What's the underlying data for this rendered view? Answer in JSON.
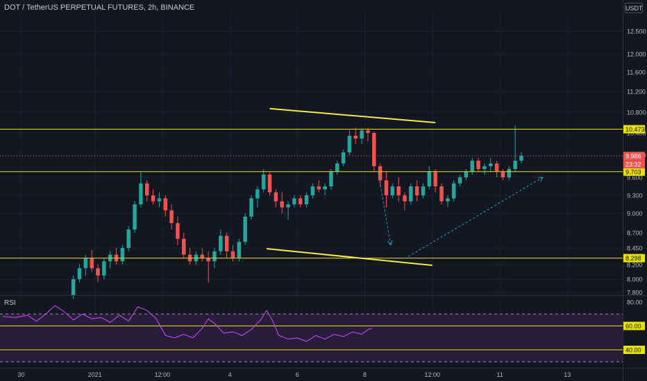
{
  "header": {
    "title": "DOT / TetherUS PERPETUAL FUTURES, 2h, BINANCE",
    "currency": "USDT"
  },
  "colors": {
    "bg": "#131722",
    "up": "#26a69a",
    "down": "#ef5350",
    "level": "#e8e200",
    "trend": "#f5e94c",
    "arrow": "#26a3b0",
    "rsi": "#b845d9",
    "rsi_band": "#281d3c",
    "axis_text": "#b2b5be",
    "grid": "#1c2030"
  },
  "chart_data": [
    {
      "type": "candlestick",
      "title": "DOT / TetherUS PERPETUAL FUTURES, 2h, BINANCE",
      "ylim": [
        7.8,
        12.9
      ],
      "y_ticks": [
        "12.500",
        "12.000",
        "11.600",
        "11.200",
        "10.800",
        "10.400",
        "10.000",
        "9.600",
        "9.300",
        "9.000",
        "8.700",
        "8.450",
        "8.200",
        "8.000",
        "7.800"
      ],
      "y_tick_values": [
        12.5,
        12.0,
        11.6,
        11.2,
        10.8,
        10.4,
        10.0,
        9.6,
        9.3,
        9.0,
        8.7,
        8.45,
        8.2,
        8.0,
        7.8
      ],
      "x_ticks": [
        "30",
        "2021",
        "12:00",
        "4",
        "6",
        "8",
        "12:00",
        "11",
        "13"
      ],
      "x_tick_positions": [
        3,
        15,
        26,
        37,
        48,
        59,
        70,
        81,
        92
      ],
      "start_index": 11.5,
      "ohlc": [
        [
          7.75,
          8.05,
          7.7,
          8.0
        ],
        [
          8.0,
          8.2,
          7.95,
          8.15
        ],
        [
          8.15,
          8.35,
          8.05,
          8.3
        ],
        [
          8.3,
          8.42,
          8.1,
          8.15
        ],
        [
          8.15,
          8.2,
          7.95,
          8.05
        ],
        [
          8.05,
          8.3,
          8.0,
          8.25
        ],
        [
          8.25,
          8.4,
          8.15,
          8.35
        ],
        [
          8.35,
          8.45,
          8.2,
          8.25
        ],
        [
          8.25,
          8.5,
          8.2,
          8.45
        ],
        [
          8.45,
          8.8,
          8.4,
          8.75
        ],
        [
          8.75,
          9.2,
          8.7,
          9.15
        ],
        [
          9.15,
          9.7,
          9.1,
          9.5
        ],
        [
          9.5,
          9.55,
          9.2,
          9.3
        ],
        [
          9.3,
          9.4,
          9.15,
          9.2
        ],
        [
          9.2,
          9.35,
          9.1,
          9.25
        ],
        [
          9.25,
          9.3,
          8.95,
          9.05
        ],
        [
          9.05,
          9.15,
          8.75,
          8.85
        ],
        [
          8.85,
          8.95,
          8.5,
          8.6
        ],
        [
          8.6,
          8.7,
          8.3,
          8.35
        ],
        [
          8.35,
          8.45,
          8.2,
          8.25
        ],
        [
          8.25,
          8.4,
          8.2,
          8.35
        ],
        [
          8.35,
          8.45,
          8.25,
          8.3
        ],
        [
          8.3,
          8.4,
          7.95,
          8.25
        ],
        [
          8.25,
          8.45,
          8.15,
          8.4
        ],
        [
          8.4,
          8.75,
          8.35,
          8.65
        ],
        [
          8.65,
          8.7,
          8.3,
          8.4
        ],
        [
          8.4,
          8.5,
          8.25,
          8.3
        ],
        [
          8.3,
          8.6,
          8.25,
          8.55
        ],
        [
          8.55,
          9.0,
          8.5,
          8.95
        ],
        [
          8.95,
          9.3,
          8.9,
          9.25
        ],
        [
          9.25,
          9.45,
          9.1,
          9.4
        ],
        [
          9.4,
          9.75,
          9.35,
          9.65
        ],
        [
          9.65,
          9.7,
          9.3,
          9.35
        ],
        [
          9.35,
          9.4,
          9.1,
          9.2
        ],
        [
          9.2,
          9.35,
          9.0,
          9.1
        ],
        [
          9.1,
          9.2,
          8.9,
          9.15
        ],
        [
          9.15,
          9.3,
          9.1,
          9.25
        ],
        [
          9.25,
          9.3,
          9.1,
          9.15
        ],
        [
          9.15,
          9.35,
          9.1,
          9.3
        ],
        [
          9.3,
          9.5,
          9.25,
          9.45
        ],
        [
          9.45,
          9.55,
          9.35,
          9.4
        ],
        [
          9.4,
          9.5,
          9.3,
          9.45
        ],
        [
          9.45,
          9.75,
          9.4,
          9.7
        ],
        [
          9.7,
          9.9,
          9.65,
          9.85
        ],
        [
          9.85,
          10.1,
          9.8,
          10.05
        ],
        [
          10.05,
          10.45,
          10.0,
          10.35
        ],
        [
          10.35,
          10.5,
          10.2,
          10.3
        ],
        [
          10.3,
          10.5,
          10.2,
          10.45
        ],
        [
          10.45,
          10.5,
          10.25,
          10.4
        ],
        [
          10.4,
          10.42,
          9.7,
          9.8
        ],
        [
          9.8,
          9.85,
          9.45,
          9.55
        ],
        [
          9.55,
          9.7,
          9.1,
          9.3
        ],
        [
          9.3,
          9.5,
          9.25,
          9.45
        ],
        [
          9.45,
          9.6,
          9.2,
          9.3
        ],
        [
          9.3,
          9.35,
          9.05,
          9.2
        ],
        [
          9.2,
          9.5,
          9.15,
          9.45
        ],
        [
          9.45,
          9.55,
          9.2,
          9.3
        ],
        [
          9.3,
          9.5,
          9.25,
          9.45
        ],
        [
          9.45,
          9.8,
          9.4,
          9.7
        ],
        [
          9.7,
          9.75,
          9.35,
          9.45
        ],
        [
          9.45,
          9.5,
          9.15,
          9.2
        ],
        [
          9.2,
          9.3,
          9.1,
          9.25
        ],
        [
          9.25,
          9.55,
          9.2,
          9.5
        ],
        [
          9.5,
          9.65,
          9.45,
          9.6
        ],
        [
          9.6,
          9.75,
          9.55,
          9.7
        ],
        [
          9.7,
          9.95,
          9.65,
          9.9
        ],
        [
          9.9,
          9.95,
          9.7,
          9.75
        ],
        [
          9.75,
          9.85,
          9.65,
          9.8
        ],
        [
          9.8,
          9.95,
          9.7,
          9.85
        ],
        [
          9.85,
          9.9,
          9.6,
          9.7
        ],
        [
          9.7,
          9.75,
          9.55,
          9.6
        ],
        [
          9.6,
          9.8,
          9.55,
          9.75
        ],
        [
          9.75,
          10.55,
          9.7,
          9.9
        ],
        [
          9.9,
          10.05,
          9.85,
          9.986
        ]
      ],
      "levels": [
        {
          "value": 10.473,
          "label": "10.473"
        },
        {
          "value": 9.703,
          "label": "9.703"
        },
        {
          "value": 8.298,
          "label": "8.298"
        }
      ],
      "last_price": {
        "value": 9.986,
        "label": "9.986",
        "countdown": "23:32"
      },
      "trendlines": [
        {
          "from": [
            43.5,
            10.87
          ],
          "to": [
            70.5,
            10.6
          ]
        },
        {
          "from": [
            43,
            8.44
          ],
          "to": [
            70,
            8.19
          ]
        }
      ],
      "arrows": [
        {
          "from": [
            61.2,
            9.68
          ],
          "to": [
            63.2,
            8.5
          ]
        },
        {
          "from": [
            65.5,
            8.29
          ],
          "to": [
            88,
            9.6
          ]
        }
      ]
    },
    {
      "type": "line",
      "title": "RSI",
      "ylim": [
        25,
        83
      ],
      "y_ticks": [
        "80.00",
        "60.00",
        "40.00"
      ],
      "y_tick_values": [
        80,
        60,
        40
      ],
      "band": [
        30,
        70
      ],
      "levels": [
        60,
        40
      ],
      "points": [
        [
          0,
          68
        ],
        [
          2,
          67
        ],
        [
          4,
          69
        ],
        [
          5.5,
          64
        ],
        [
          7,
          70
        ],
        [
          8.5,
          77
        ],
        [
          10,
          72
        ],
        [
          11.5,
          65
        ],
        [
          13,
          70
        ],
        [
          14.5,
          66
        ],
        [
          16,
          67
        ],
        [
          17.5,
          63
        ],
        [
          19,
          69
        ],
        [
          20.5,
          64
        ],
        [
          22,
          76
        ],
        [
          23.5,
          73
        ],
        [
          25,
          66
        ],
        [
          26.5,
          52
        ],
        [
          28,
          50
        ],
        [
          29.5,
          53
        ],
        [
          31,
          50
        ],
        [
          32.5,
          58
        ],
        [
          33.5,
          66
        ],
        [
          34.5,
          62
        ],
        [
          36,
          54
        ],
        [
          37.5,
          55
        ],
        [
          39,
          52
        ],
        [
          40.5,
          57
        ],
        [
          42,
          65
        ],
        [
          43,
          73
        ],
        [
          44,
          64
        ],
        [
          45,
          52
        ],
        [
          46.5,
          49
        ],
        [
          48,
          50
        ],
        [
          49.5,
          47
        ],
        [
          51,
          52
        ],
        [
          52.5,
          49
        ],
        [
          54,
          53
        ],
        [
          55.5,
          51
        ],
        [
          57,
          55
        ],
        [
          58.5,
          53
        ],
        [
          59.5,
          57
        ],
        [
          60.2,
          58
        ]
      ],
      "last_index": 60.2
    }
  ],
  "rsi": {
    "label": "RSI"
  }
}
